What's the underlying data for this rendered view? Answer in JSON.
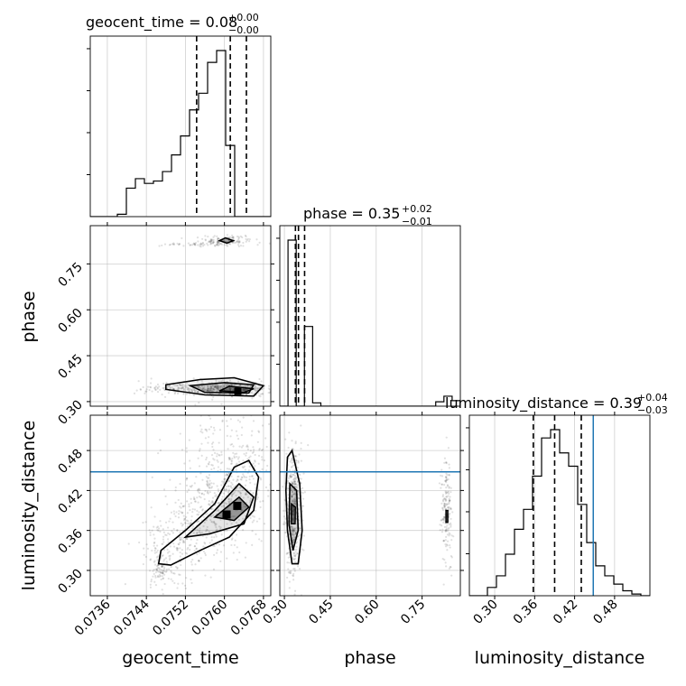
{
  "figure": {
    "titles": {
      "p0_main": "geocent_time = 0.08",
      "p0_sup": "+0.00",
      "p0_sub": "−0.00",
      "p1_main": "phase = 0.35",
      "p1_sup": "+0.02",
      "p1_sub": "−0.01",
      "p2_main": "luminosity_distance = 0.39",
      "p2_sup": "+0.04",
      "p2_sub": "−0.03"
    },
    "xlabels": [
      "geocent_time",
      "phase",
      "luminosity_distance"
    ],
    "ylabels": [
      "phase",
      "luminosity_distance"
    ],
    "colors": {
      "hist": "#000000",
      "truth": "#1f77b4",
      "grid": "#b0b0b0",
      "points": "#000000"
    }
  },
  "chart_data": {
    "type": "corner",
    "parameters": [
      "geocent_time",
      "phase",
      "luminosity_distance"
    ],
    "ranges": {
      "geocent_time": [
        0.07325,
        0.07695
      ],
      "phase": [
        0.285,
        0.875
      ],
      "luminosity_distance": [
        0.262,
        0.533
      ]
    },
    "ticks": {
      "geocent_time": [
        "0.0736",
        "0.0744",
        "0.0752",
        "0.0760",
        "0.0768"
      ],
      "phase": [
        "0.30",
        "0.45",
        "0.60",
        "0.75"
      ],
      "luminosity_distance": [
        "0.30",
        "0.36",
        "0.42",
        "0.48"
      ]
    },
    "truths": {
      "luminosity_distance": 0.448
    },
    "quantile_lines": {
      "geocent_time": [
        0.07543,
        0.07612,
        0.07645
      ],
      "phase": [
        0.336,
        0.346,
        0.366
      ],
      "luminosity_distance": [
        0.358,
        0.39,
        0.43
      ]
    },
    "histograms": {
      "geocent_time": [
        0,
        0,
        0,
        1,
        12,
        16,
        14,
        15,
        19,
        26,
        34,
        45,
        52,
        65,
        70,
        30,
        0,
        0,
        0,
        0
      ],
      "phase": [
        0,
        150,
        0,
        72,
        3,
        0,
        0,
        0,
        0,
        0,
        0,
        0,
        0,
        0,
        0,
        0,
        0,
        0,
        0,
        4,
        9,
        5
      ],
      "luminosity_distance": [
        0,
        0,
        0.05,
        0.12,
        0.25,
        0.4,
        0.52,
        0.72,
        0.95,
        1.0,
        0.86,
        0.78,
        0.55,
        0.32,
        0.18,
        0.12,
        0.07,
        0.03,
        0.01,
        0
      ]
    }
  }
}
